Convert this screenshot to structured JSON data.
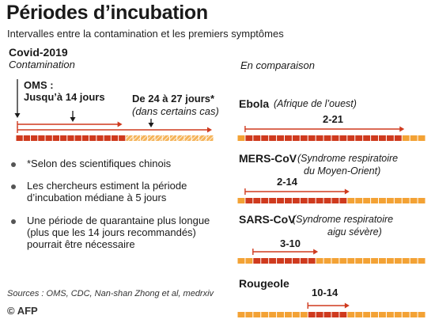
{
  "title": "Périodes d’incubation",
  "subtitle": "Intervalles entre la contamination et les premiers symptômes",
  "covid": {
    "name": "Covid-2019",
    "sublabel": "Contamination",
    "oms_line1": "OMS :",
    "oms_line2": "Jusqu’à 14 jours",
    "range_label": "De 24 à 27 jours*",
    "range_note": "(dans certains cas)"
  },
  "comparison_label": "En comparaison",
  "notes": [
    {
      "line1": "*Selon des scientifiques chinois",
      "line2": ""
    },
    {
      "line1": "Les chercheurs estiment la période",
      "line2": "d’incubation médiane à 5 jours"
    },
    {
      "line1": "Une période de quarantaine plus longue",
      "line2": "(plus que les 14 jours recommandés)",
      "line3": "pourrait être nécessaire"
    }
  ],
  "sources": "Sources : OMS, CDC, Nan-shan Zhong et al, medrxiv",
  "credit": "© AFP",
  "colors": {
    "dark": "#cf3a1e",
    "light": "#f3a235",
    "hatch": "#f5b45a",
    "arrow": "#cf3a1e",
    "text": "#1a1a1a"
  },
  "chart_data": {
    "type": "bar",
    "unit": "jours",
    "covid": {
      "segments": 27,
      "oms_max": 14,
      "extended_min": 24,
      "extended_max": 27,
      "median": 5
    },
    "diseases": [
      {
        "name": "Ebola",
        "description": "(Afrique de l’ouest)",
        "description2": "",
        "label": "2-21",
        "min": 2,
        "max": 21,
        "segments": 24
      },
      {
        "name": "MERS-CoV",
        "description": "(Syndrome respiratoire",
        "description2": "du Moyen-Orient)",
        "label": "2-14",
        "min": 2,
        "max": 14,
        "segments": 24
      },
      {
        "name": "SARS-CoV",
        "description": "(Syndrome respiratoire",
        "description2": "aigu sévère)",
        "label": "3-10",
        "min": 3,
        "max": 10,
        "segments": 24
      },
      {
        "name": "Rougeole",
        "description": "",
        "description2": "",
        "label": "10-14",
        "min": 10,
        "max": 14,
        "segments": 24
      }
    ]
  }
}
